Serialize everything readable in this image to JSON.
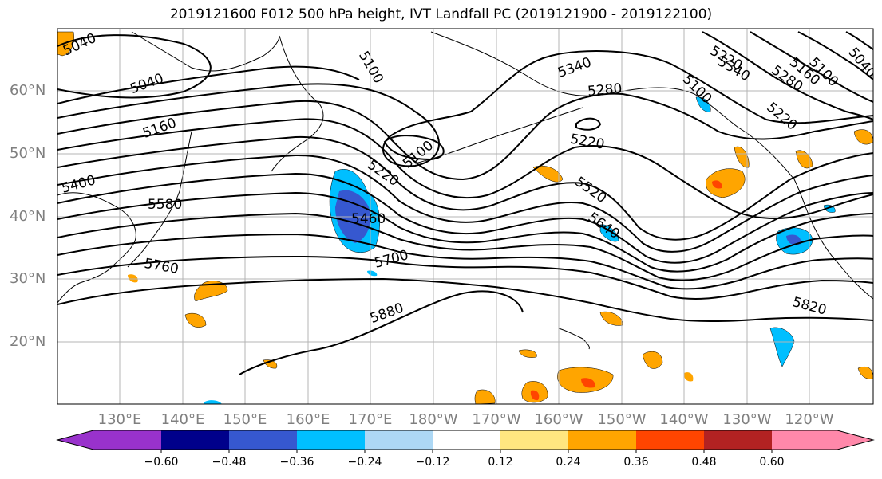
{
  "title": "2019121600 F012 500 hPa height, IVT Landfall PC (2019121900 - 2019122100)",
  "lat_labels": [
    "60°N",
    "50°N",
    "40°N",
    "30°N",
    "20°N"
  ],
  "lon_labels": [
    "130°E",
    "140°E",
    "150°E",
    "160°E",
    "170°E",
    "180°W",
    "170°W",
    "160°W",
    "150°W",
    "140°W",
    "130°W",
    "120°W"
  ],
  "contour_labels": [
    "5040",
    "5040",
    "5100",
    "5340",
    "5040",
    "5100",
    "5220",
    "5280",
    "5340",
    "5160",
    "5100",
    "5160",
    "5220",
    "5280",
    "5100",
    "5220",
    "5400",
    "5220",
    "5520",
    "5580",
    "5460",
    "5640",
    "5700",
    "5760",
    "5880",
    "5820"
  ],
  "colorbar": {
    "ticks": [
      "−0.60",
      "−0.48",
      "−0.36",
      "−0.24",
      "−0.12",
      "0.12",
      "0.24",
      "0.36",
      "0.48",
      "0.60"
    ],
    "colors": [
      "#9932cc",
      "#00008b",
      "#3658d0",
      "#00bfff",
      "#add8f5",
      "#ffffff",
      "#ffe680",
      "#ffa500",
      "#ff4500",
      "#b22222",
      "#ff88aa"
    ]
  }
}
